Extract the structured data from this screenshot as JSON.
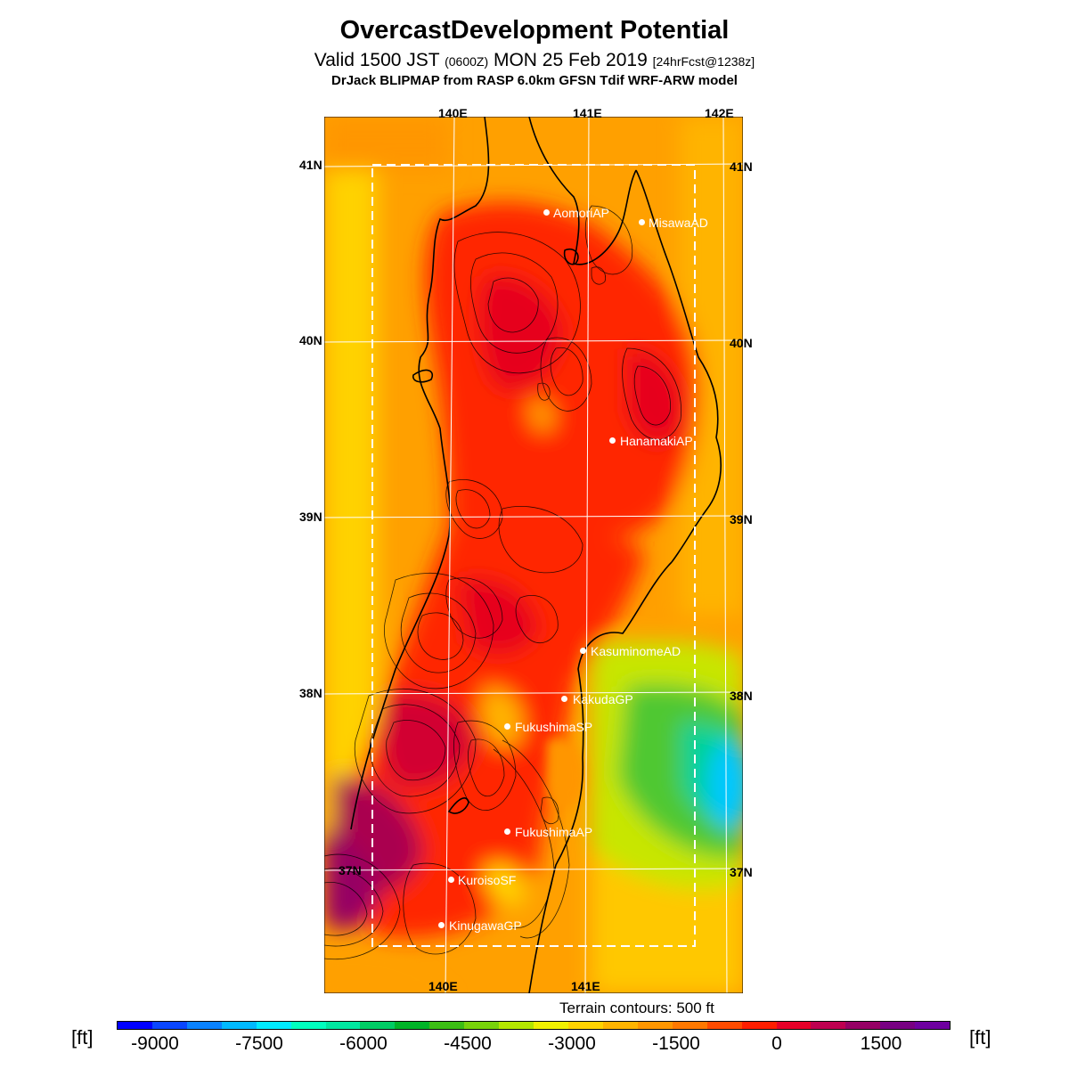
{
  "header": {
    "title": "OvercastDevelopment Potential",
    "subtitle_main": "Valid 1500 JST",
    "subtitle_utc": "(0600Z)",
    "subtitle_date": "MON 25 Feb 2019",
    "subtitle_fcst": "[24hrFcst@1238z]",
    "model_line": "DrJack BLIPMAP from RASP 6.0km GFSN Tdif WRF-ARW model"
  },
  "map": {
    "lon_top": [
      "140E",
      "141E",
      "142E"
    ],
    "lon_bottom": [
      "140E",
      "141E"
    ],
    "lat_left": [
      "41N",
      "40N",
      "39N",
      "38N",
      "37N"
    ],
    "lat_right": [
      "41N",
      "40N",
      "39N",
      "38N",
      "37N"
    ],
    "places": [
      {
        "name": "AomoriAP"
      },
      {
        "name": "MisawaAD"
      },
      {
        "name": "HanamakiAP"
      },
      {
        "name": "KasuminomeAD"
      },
      {
        "name": "KakudaGP"
      },
      {
        "name": "FukushimaSP"
      },
      {
        "name": "FukushimaAP"
      },
      {
        "name": "KuroisoSF"
      },
      {
        "name": "KinugawaGP"
      }
    ],
    "terrain_note": "Terrain contours: 500 ft"
  },
  "legend": {
    "unit_left": "[ft]",
    "unit_right": "[ft]",
    "ticks": [
      "-9000",
      "-7500",
      "-6000",
      "-4500",
      "-3000",
      "-1500",
      "0",
      "1500"
    ],
    "colors": [
      "#0000ff",
      "#0a46ff",
      "#0a82ff",
      "#00b9ff",
      "#00ebff",
      "#00ffbe",
      "#00e6a0",
      "#00cd64",
      "#00b428",
      "#3cbe14",
      "#78d20a",
      "#b4e600",
      "#f0f000",
      "#ffd200",
      "#ffb400",
      "#ff9600",
      "#ff7800",
      "#ff4b00",
      "#ff1e00",
      "#e60028",
      "#be0050",
      "#960064",
      "#780082",
      "#6e00a0"
    ]
  }
}
